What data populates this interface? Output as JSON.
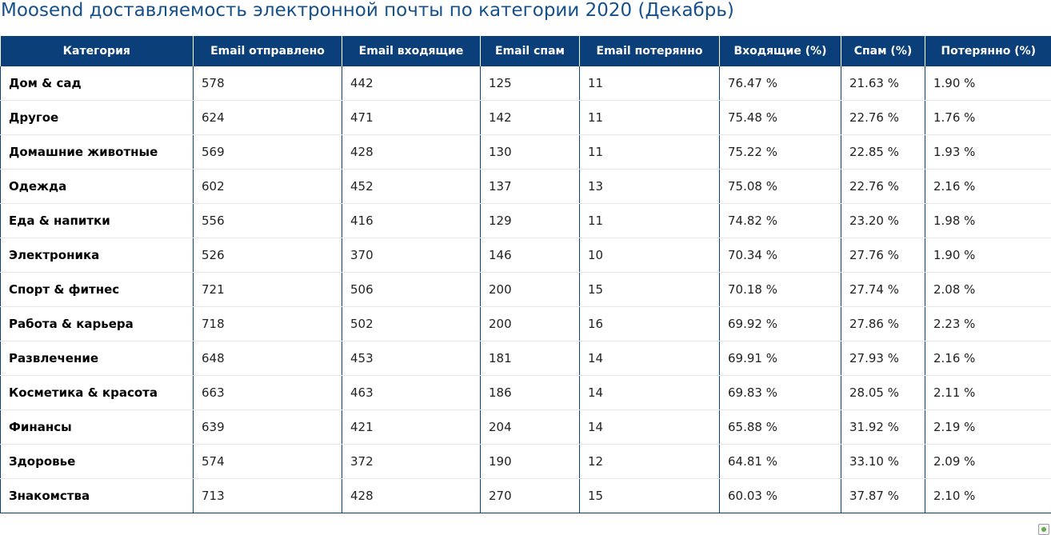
{
  "title": "Moosend доставляемость электронной почты по категории 2020 (Декабрь)",
  "table": {
    "headers": [
      "Категория",
      "Email отправлено",
      "Email входящие",
      "Email спам",
      "Email потерянно",
      "Входящие (%)",
      "Спам (%)",
      "Потерянно (%)"
    ],
    "rows": [
      [
        "Дом & сад",
        "578",
        "442",
        "125",
        "11",
        "76.47 %",
        "21.63 %",
        "1.90 %"
      ],
      [
        "Другое",
        "624",
        "471",
        "142",
        "11",
        "75.48 %",
        "22.76 %",
        "1.76 %"
      ],
      [
        "Домашние животные",
        "569",
        "428",
        "130",
        "11",
        "75.22 %",
        "22.85 %",
        "1.93 %"
      ],
      [
        "Одежда",
        "602",
        "452",
        "137",
        "13",
        "75.08 %",
        "22.76 %",
        "2.16 %"
      ],
      [
        "Еда & напитки",
        "556",
        "416",
        "129",
        "11",
        "74.82 %",
        "23.20 %",
        "1.98 %"
      ],
      [
        "Электроника",
        "526",
        "370",
        "146",
        "10",
        "70.34 %",
        "27.76 %",
        "1.90 %"
      ],
      [
        "Спорт & фитнес",
        "721",
        "506",
        "200",
        "15",
        "70.18 %",
        "27.74 %",
        "2.08 %"
      ],
      [
        "Работа & карьера",
        "718",
        "502",
        "200",
        "16",
        "69.92 %",
        "27.86 %",
        "2.23 %"
      ],
      [
        "Развлечение",
        "648",
        "453",
        "181",
        "14",
        "69.91 %",
        "27.93 %",
        "2.16 %"
      ],
      [
        "Косметика & красота",
        "663",
        "463",
        "186",
        "14",
        "69.83 %",
        "28.05 %",
        "2.11 %"
      ],
      [
        "Финансы",
        "639",
        "421",
        "204",
        "14",
        "65.88 %",
        "31.92 %",
        "2.19 %"
      ],
      [
        "Здоровье",
        "574",
        "372",
        "190",
        "12",
        "64.81 %",
        "33.10 %",
        "2.09 %"
      ],
      [
        "Знакомства",
        "713",
        "428",
        "270",
        "15",
        "60.03 %",
        "37.87 %",
        "2.10 %"
      ]
    ]
  },
  "colors": {
    "title": "#16508a",
    "header_background": "#0b3f7a",
    "header_text": "#ffffff"
  },
  "icons": {
    "footer": "broken-image-icon"
  }
}
